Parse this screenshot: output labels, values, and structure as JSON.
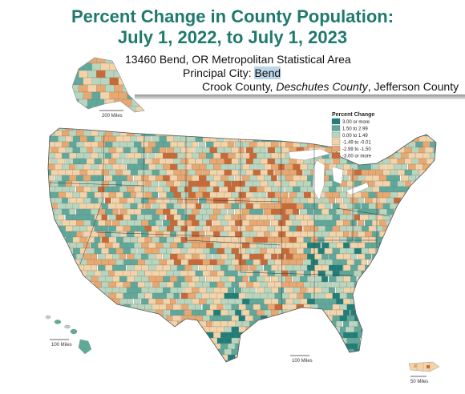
{
  "header": {
    "title_line1": "Percent Change in County Population:",
    "title_line2": "July 1, 2022, to July 1, 2023"
  },
  "info": {
    "msa": "13460 Bend, OR Metropolitan Statistical Area",
    "principal_city_label": "Principal City: ",
    "principal_city": "Bend",
    "county1": "Crook County, ",
    "county2": "Deschutes County",
    "county_sep": ", ",
    "county3": "Jefferson County"
  },
  "legend": {
    "title": "Percent Change",
    "items": [
      {
        "label": "3.00 or more",
        "color": "#1f7f78"
      },
      {
        "label": "1.50 to 2.99",
        "color": "#5fa99a"
      },
      {
        "label": "0.00 to 1.49",
        "color": "#b8d6be"
      },
      {
        "label": "-1.49 to -0.01",
        "color": "#f3d3a8"
      },
      {
        "label": "-2.99 to -1.50",
        "color": "#e8a870"
      },
      {
        "label": "-3.00 or more",
        "color": "#c96a36"
      }
    ]
  },
  "scales": {
    "alaska": "200 Miles",
    "hawaii": "100 Miles",
    "conus": "100 Miles",
    "puerto_rico": "50 Miles"
  }
}
